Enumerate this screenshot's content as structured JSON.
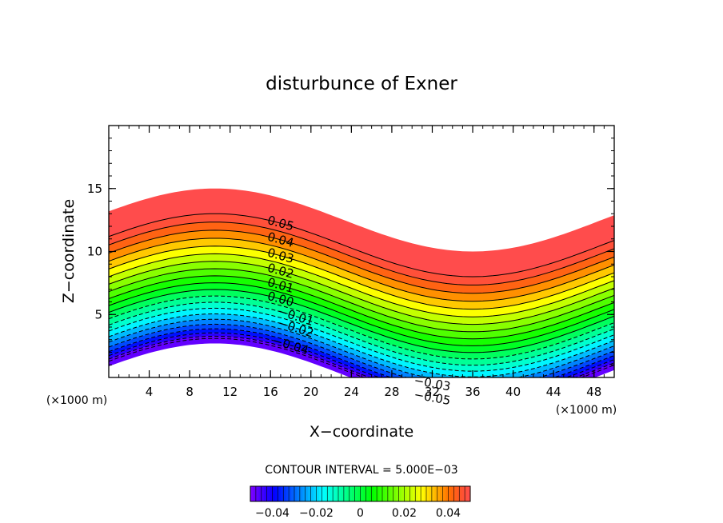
{
  "chart_data": {
    "type": "contour",
    "title": "disturbunce of Exner",
    "xlabel": "X−coordinate",
    "ylabel": "Z−coordinate",
    "x_unit_left": "(×1000 m)",
    "x_unit_right": "(×1000 m)",
    "xlim": [
      0,
      50
    ],
    "ylim": [
      0,
      20
    ],
    "x_ticks": [
      4,
      8,
      12,
      16,
      20,
      24,
      28,
      32,
      36,
      40,
      44,
      48
    ],
    "x_tick_labels": [
      "4",
      "8",
      "12",
      "16",
      "20",
      "24",
      "28",
      "32",
      "36",
      "40",
      "44",
      "48"
    ],
    "y_ticks": [
      5,
      10,
      15
    ],
    "y_tick_labels": [
      "5",
      "10",
      "15"
    ],
    "terrain": {
      "description": "contours follow a sinusoidal hump shape",
      "hump_center_x": 10.5,
      "trough_center_x": 36,
      "amplitude": 2.5
    },
    "field": {
      "min": -0.05,
      "max": 0.05,
      "z_at_min": 0.6,
      "z_at_max": 10.5,
      "negative_linestyle": "dashed",
      "positive_linestyle": "solid"
    },
    "contour_interval_text": "CONTOUR INTERVAL = 5.000E−03",
    "contour_labels": [
      {
        "text": "0.05",
        "x": 17,
        "level": 0.05
      },
      {
        "text": "0.04",
        "x": 17,
        "level": 0.04
      },
      {
        "text": "0.03",
        "x": 17,
        "level": 0.03
      },
      {
        "text": "0.02",
        "x": 17,
        "level": 0.02
      },
      {
        "text": "0.01",
        "x": 17,
        "level": 0.01
      },
      {
        "text": "0.00",
        "x": 17,
        "level": 0.0
      },
      {
        "text": "−0.01",
        "x": 18.5,
        "level": -0.01
      },
      {
        "text": "−0.02",
        "x": 18.5,
        "level": -0.02
      },
      {
        "text": "−0.04",
        "x": 18,
        "level": -0.04
      },
      {
        "text": "−0.03",
        "x": 32,
        "level": -0.03
      },
      {
        "text": "−0.05",
        "x": 32,
        "level": -0.05
      }
    ],
    "colorbar": {
      "min": -0.05,
      "max": 0.05,
      "ticks": [
        -0.04,
        -0.02,
        0,
        0.02,
        0.04
      ],
      "tick_labels": [
        "−0.04",
        "−0.02",
        "0",
        "0.02",
        "0.04"
      ]
    }
  }
}
